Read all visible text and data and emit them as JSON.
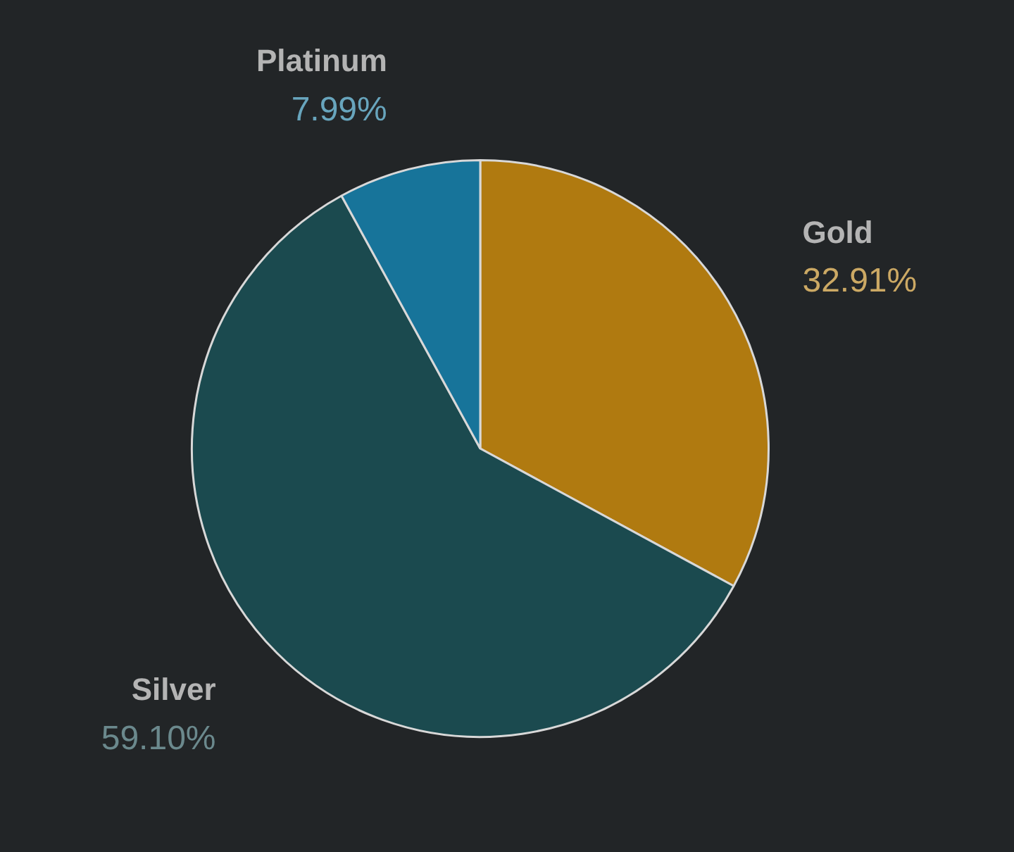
{
  "chart_data": {
    "type": "pie",
    "categories": [
      "Gold",
      "Silver",
      "Platinum"
    ],
    "values": [
      32.91,
      59.1,
      7.99
    ],
    "colors": [
      "#b07a10",
      "#1b4a4f",
      "#17749a"
    ],
    "value_labels": [
      "32.91%",
      "59.10%",
      "7.99%"
    ],
    "legend": false
  }
}
